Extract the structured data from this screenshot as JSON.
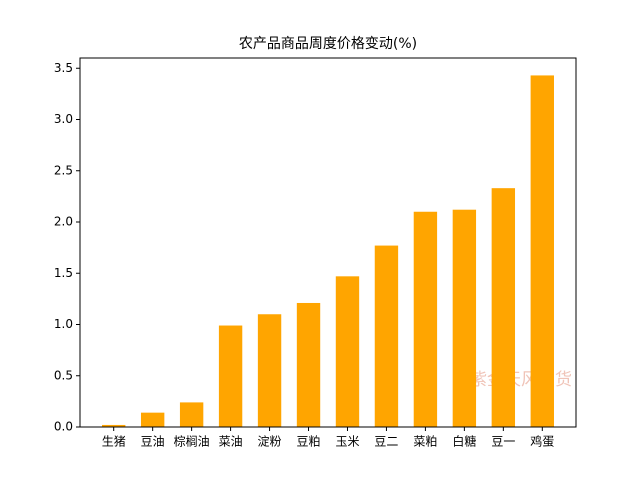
{
  "chart_data": {
    "type": "bar",
    "title": "农产品商品周度价格变动(%)",
    "categories": [
      "生猪",
      "豆油",
      "棕榈油",
      "菜油",
      "淀粉",
      "豆粕",
      "玉米",
      "豆二",
      "菜粕",
      "白糖",
      "豆一",
      "鸡蛋"
    ],
    "values": [
      0.02,
      0.14,
      0.24,
      0.99,
      1.1,
      1.21,
      1.47,
      1.77,
      2.1,
      2.12,
      2.33,
      3.43
    ],
    "color": "#ffa500",
    "ylim": [
      0,
      3.6
    ],
    "yticks": [
      {
        "value": 0,
        "label": "0.0"
      },
      0.5,
      {
        "value": 1,
        "label": "1.0"
      },
      1.5,
      {
        "value": 2,
        "label": "2.0"
      },
      2.5,
      {
        "value": 3,
        "label": "3.0"
      },
      3.5
    ],
    "grid": false,
    "watermark": "紫金天风期货"
  }
}
